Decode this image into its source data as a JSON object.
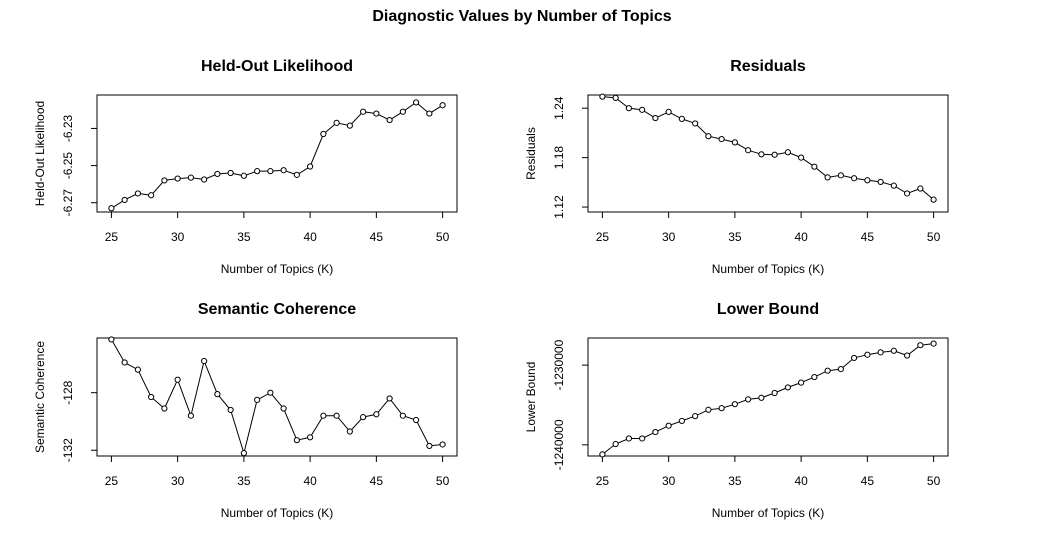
{
  "title": "Diagnostic Values by Number of Topics",
  "chart_data": [
    {
      "type": "line",
      "title": "Held-Out Likelihood",
      "xlabel": "Number of Topics (K)",
      "ylabel": "Held-Out Likelihood",
      "xlim": [
        25,
        50
      ],
      "ylim": [
        -6.275,
        -6.212
      ],
      "xticks": [
        25,
        30,
        35,
        40,
        45,
        50
      ],
      "yticks": [
        -6.27,
        -6.25,
        -6.23
      ],
      "ytick_labels": [
        "-6.27",
        "-6.25",
        -6.23
      ],
      "grid": false,
      "x": [
        25,
        26,
        27,
        28,
        29,
        30,
        31,
        32,
        33,
        34,
        35,
        36,
        37,
        38,
        39,
        40,
        41,
        42,
        43,
        44,
        45,
        46,
        47,
        48,
        49,
        50
      ],
      "y": [
        -6.273,
        -6.2685,
        -6.265,
        -6.266,
        -6.258,
        -6.257,
        -6.2565,
        -6.2575,
        -6.2545,
        -6.254,
        -6.2555,
        -6.253,
        -6.253,
        -6.2525,
        -6.255,
        -6.2505,
        -6.233,
        -6.227,
        -6.2285,
        -6.221,
        -6.222,
        -6.2255,
        -6.221,
        -6.216,
        -6.222,
        -6.2175
      ]
    },
    {
      "type": "line",
      "title": "Residuals",
      "xlabel": "Number of Topics (K)",
      "ylabel": "Residuals",
      "xlim": [
        25,
        50
      ],
      "ylim": [
        1.114,
        1.256
      ],
      "xticks": [
        25,
        30,
        35,
        40,
        45,
        50
      ],
      "yticks": [
        1.12,
        1.18,
        1.24
      ],
      "ytick_labels": [
        "1.12",
        "1.18",
        "1.24"
      ],
      "grid": false,
      "x": [
        25,
        26,
        27,
        28,
        29,
        30,
        31,
        32,
        33,
        34,
        35,
        36,
        37,
        38,
        39,
        40,
        41,
        42,
        43,
        44,
        45,
        46,
        47,
        48,
        49,
        50
      ],
      "y": [
        1.254,
        1.2525,
        1.24,
        1.238,
        1.228,
        1.2355,
        1.227,
        1.2215,
        1.206,
        1.2025,
        1.1985,
        1.189,
        1.184,
        1.1835,
        1.1865,
        1.18,
        1.169,
        1.156,
        1.1585,
        1.155,
        1.1525,
        1.1505,
        1.146,
        1.1365,
        1.1425,
        1.129
      ]
    },
    {
      "type": "line",
      "title": "Semantic Coherence",
      "xlabel": "Number of Topics (K)",
      "ylabel": "Semantic Coherence",
      "xlim": [
        25,
        50
      ],
      "ylim": [
        -132.4,
        -124.2
      ],
      "xticks": [
        25,
        30,
        35,
        40,
        45,
        50
      ],
      "yticks": [
        -132,
        -128
      ],
      "ytick_labels": [
        "-132",
        "-128"
      ],
      "grid": false,
      "x": [
        25,
        26,
        27,
        28,
        29,
        30,
        31,
        32,
        33,
        34,
        35,
        36,
        37,
        38,
        39,
        40,
        41,
        42,
        43,
        44,
        45,
        46,
        47,
        48,
        49,
        50
      ],
      "y": [
        -124.3,
        -125.9,
        -126.4,
        -128.3,
        -129.1,
        -127.1,
        -129.6,
        -125.8,
        -128.1,
        -129.2,
        -132.2,
        -128.5,
        -128.0,
        -129.1,
        -131.3,
        -131.1,
        -129.6,
        -129.6,
        -130.7,
        -129.7,
        -129.5,
        -128.4,
        -129.6,
        -129.9,
        -131.7,
        -131.6
      ]
    },
    {
      "type": "line",
      "title": "Lower Bound",
      "xlabel": "Number of Topics (K)",
      "ylabel": "Lower Bound",
      "xlim": [
        25,
        50
      ],
      "ylim": [
        -1241400,
        -1226600
      ],
      "xticks": [
        25,
        30,
        35,
        40,
        45,
        50
      ],
      "yticks": [
        -1240000,
        -1230000
      ],
      "ytick_labels": [
        "-1240000",
        "-1230000"
      ],
      "grid": false,
      "x": [
        25,
        26,
        27,
        28,
        29,
        30,
        31,
        32,
        33,
        34,
        35,
        36,
        37,
        38,
        39,
        40,
        41,
        42,
        43,
        44,
        45,
        46,
        47,
        48,
        49,
        50
      ],
      "y": [
        -1241200,
        -1239900,
        -1239200,
        -1239200,
        -1238400,
        -1237600,
        -1237000,
        -1236400,
        -1235600,
        -1235400,
        -1234900,
        -1234300,
        -1234100,
        -1233500,
        -1232800,
        -1232200,
        -1231500,
        -1230700,
        -1230500,
        -1229100,
        -1228700,
        -1228400,
        -1228200,
        -1228800,
        -1227500,
        -1227300
      ]
    }
  ]
}
